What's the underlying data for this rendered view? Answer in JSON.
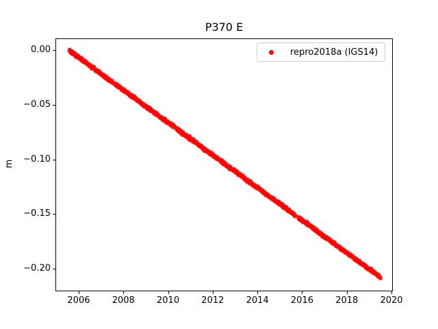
{
  "chart_data": {
    "type": "scatter",
    "title": "P370 E",
    "xlabel": "",
    "ylabel": "m",
    "xlim": [
      2004.96,
      2020.06
    ],
    "ylim": [
      -0.2205,
      0.0105
    ],
    "grid": false,
    "x_tick_values": [
      2006,
      2008,
      2010,
      2012,
      2014,
      2016,
      2018,
      2020
    ],
    "x_tick_labels": [
      "2006",
      "2008",
      "2010",
      "2012",
      "2014",
      "2016",
      "2018",
      "2020"
    ],
    "y_tick_values": [
      0.0,
      -0.05,
      -0.1,
      -0.15,
      -0.2
    ],
    "y_tick_labels": [
      "0.00",
      "−0.05",
      "−0.10",
      "−0.15",
      "−0.20"
    ],
    "legend": {
      "position": "upper right",
      "entries": [
        {
          "label": "repro2018a (IGS14)",
          "marker": "dot",
          "color": "#ff0000"
        }
      ]
    },
    "series": [
      {
        "name": "repro2018a (IGS14)",
        "color": "#ff0000",
        "marker": ".",
        "marker_size": 2.2,
        "noise_m": 0.0016,
        "sample_step_years": 0.004,
        "gaps": [
          [
            2015.72,
            2015.84
          ]
        ],
        "points": [
          [
            2005.55,
            0.0
          ],
          [
            2005.8,
            -0.0035
          ],
          [
            2006.05,
            -0.0076
          ],
          [
            2006.3,
            -0.011
          ],
          [
            2006.55,
            -0.0151
          ],
          [
            2006.8,
            -0.0184
          ],
          [
            2007.05,
            -0.0226
          ],
          [
            2007.3,
            -0.0262
          ],
          [
            2007.55,
            -0.03
          ],
          [
            2007.8,
            -0.0333
          ],
          [
            2008.05,
            -0.0375
          ],
          [
            2008.3,
            -0.0412
          ],
          [
            2008.55,
            -0.0445
          ],
          [
            2008.8,
            -0.0486
          ],
          [
            2009.05,
            -0.052
          ],
          [
            2009.3,
            -0.0557
          ],
          [
            2009.55,
            -0.0598
          ],
          [
            2009.8,
            -0.0635
          ],
          [
            2010.05,
            -0.0669
          ],
          [
            2010.3,
            -0.0706
          ],
          [
            2010.55,
            -0.0747
          ],
          [
            2010.8,
            -0.0784
          ],
          [
            2011.05,
            -0.0818
          ],
          [
            2011.3,
            -0.0855
          ],
          [
            2011.55,
            -0.0896
          ],
          [
            2011.8,
            -0.0933
          ],
          [
            2012.05,
            -0.0967
          ],
          [
            2012.3,
            -0.1004
          ],
          [
            2012.55,
            -0.1045
          ],
          [
            2012.8,
            -0.1082
          ],
          [
            2013.05,
            -0.1116
          ],
          [
            2013.3,
            -0.1153
          ],
          [
            2013.55,
            -0.1194
          ],
          [
            2013.8,
            -0.1231
          ],
          [
            2014.05,
            -0.1265
          ],
          [
            2014.3,
            -0.1302
          ],
          [
            2014.55,
            -0.1343
          ],
          [
            2014.8,
            -0.138
          ],
          [
            2015.05,
            -0.1414
          ],
          [
            2015.3,
            -0.1451
          ],
          [
            2015.55,
            -0.1492
          ],
          [
            2015.8,
            -0.1529
          ],
          [
            2016.05,
            -0.1563
          ],
          [
            2016.3,
            -0.1597
          ],
          [
            2016.55,
            -0.1634
          ],
          [
            2016.8,
            -0.1679
          ],
          [
            2017.05,
            -0.1713
          ],
          [
            2017.3,
            -0.1748
          ],
          [
            2017.55,
            -0.1789
          ],
          [
            2017.8,
            -0.1826
          ],
          [
            2018.05,
            -0.186
          ],
          [
            2018.3,
            -0.1897
          ],
          [
            2018.55,
            -0.1938
          ],
          [
            2018.8,
            -0.1975
          ],
          [
            2019.05,
            -0.2009
          ],
          [
            2019.3,
            -0.2046
          ],
          [
            2019.55,
            -0.2087
          ]
        ]
      }
    ]
  }
}
